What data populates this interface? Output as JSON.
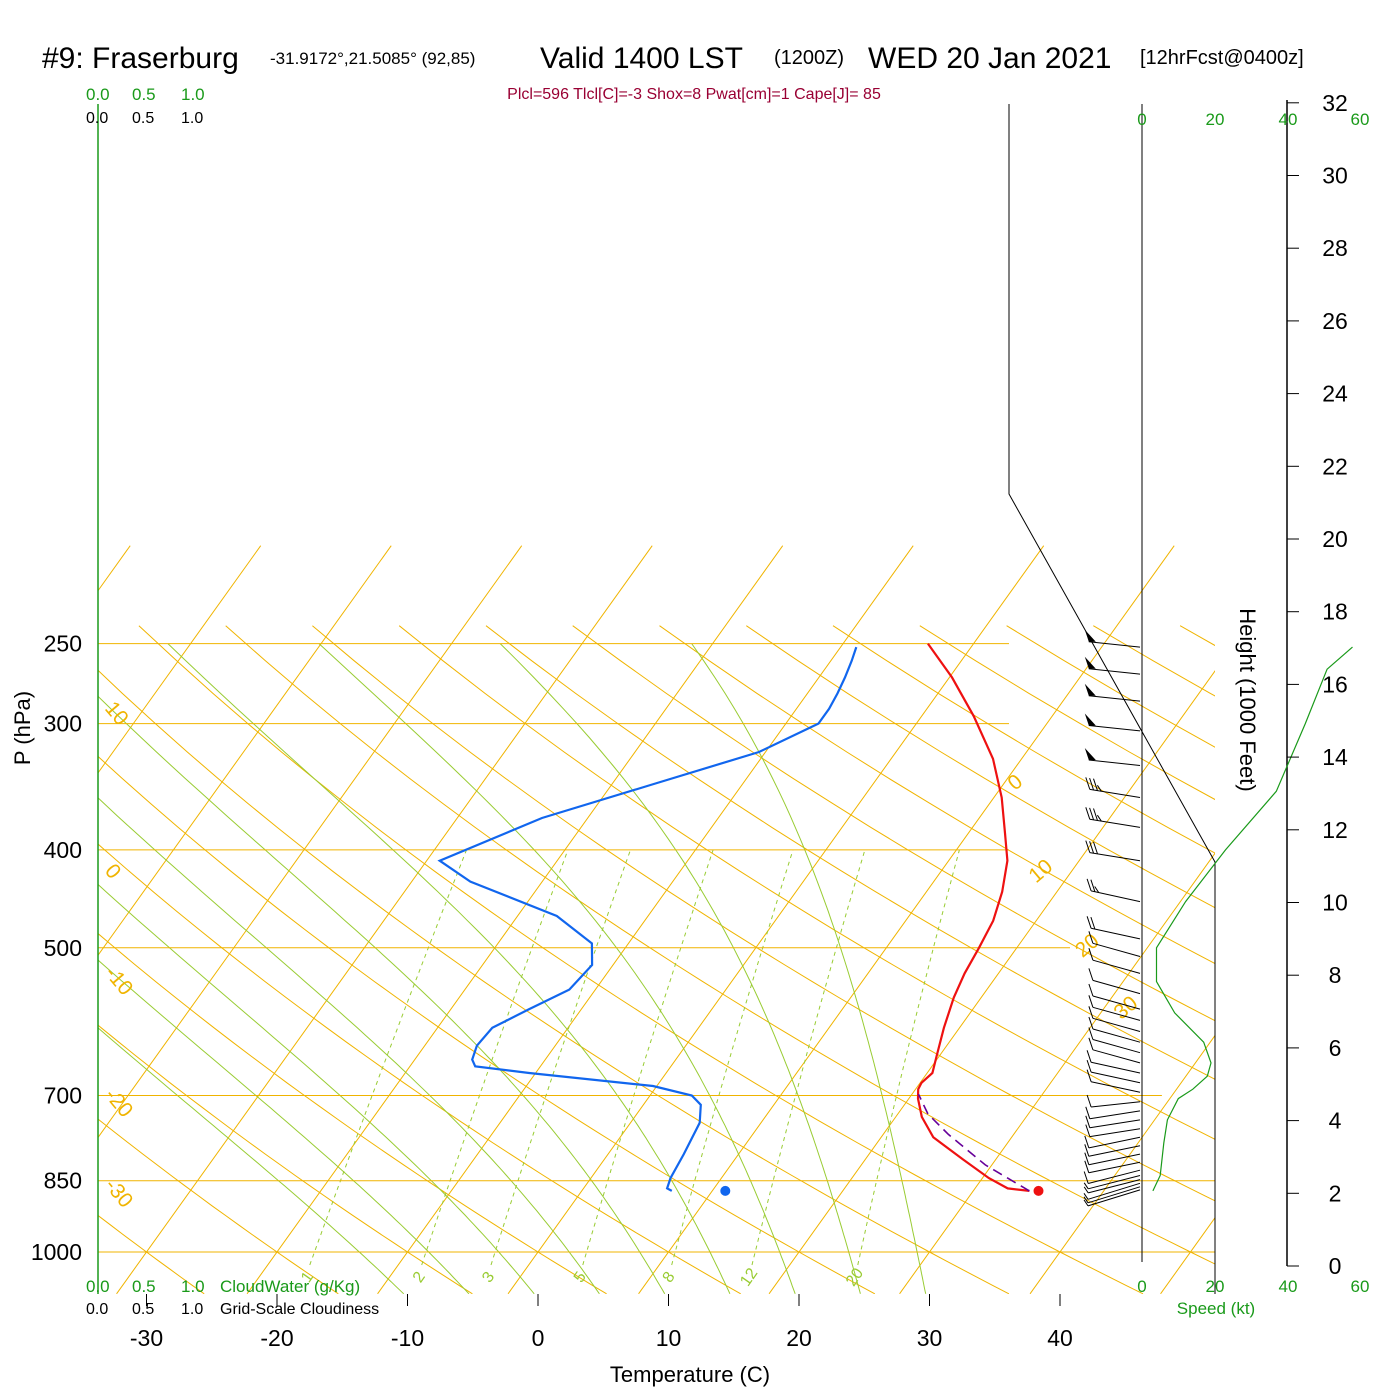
{
  "title": {
    "station": "#9: Fraserburg",
    "coords": "-31.9172°,21.5085° (92,85)",
    "valid": "Valid 1400 LST",
    "zulu": "(1200Z)",
    "date": "WED 20 Jan 2021",
    "fcst": "[12hrFcst@0400z]"
  },
  "indices": "Plcl=596 Tlcl[C]=-3 Shox=8 Pwat[cm]=1 Cape[J]= 85",
  "colors": {
    "temperature": "#ee1111",
    "dewpoint": "#1166ee",
    "parcel": "#660099",
    "isotherm": "#f0b400",
    "mixing_ratio": "#99cc33",
    "moist_adiabat": "#99cc33",
    "scale_green": "#1a9a1a"
  },
  "scales": {
    "cloudwater_top": [
      "0.0",
      "0.5",
      "1.0"
    ],
    "cloudiness_top": [
      "0.0",
      "0.5",
      "1.0"
    ],
    "cloudwater_bottom": [
      "0.0",
      "0.5",
      "1.0"
    ],
    "cloudiness_bottom": [
      "0.0",
      "0.5",
      "1.0"
    ],
    "cloudwater_label": "CloudWater (g/Kg)",
    "cloudiness_label": "Grid-Scale Cloudiness",
    "speed_ticks": [
      "0",
      "20",
      "40",
      "60"
    ],
    "speed_label": "Speed (kt)"
  },
  "chart_data": {
    "type": "line",
    "chart_kind": "skew-T log-P sounding",
    "xlabel": "Temperature (C)",
    "ylabel": "P (hPa)",
    "y2label": "Height (1000 Feet)",
    "xlim": [
      -34,
      47
    ],
    "ylim": [
      1030,
      250
    ],
    "y_scale": "log",
    "x_ticks": [
      -30,
      -20,
      -10,
      0,
      10,
      20,
      30,
      40
    ],
    "p_ticks": [
      250,
      300,
      400,
      500,
      700,
      850,
      1000
    ],
    "height_ticks": [
      0,
      2,
      4,
      6,
      8,
      10,
      12,
      14,
      16,
      18,
      20,
      22,
      24,
      26,
      28,
      30,
      32
    ],
    "isotherm_labels": [
      "10",
      "0",
      "-10",
      "-20",
      "-30",
      "0",
      "10",
      "20",
      "30"
    ],
    "mixing_ratio_labels": [
      "1",
      "2",
      "3",
      "5",
      "8",
      "12",
      "20"
    ],
    "mixing_ratios_gkg": [
      1,
      2,
      3,
      5,
      8,
      12,
      20
    ],
    "series": [
      {
        "name": "Temperature",
        "color": "#ee1111",
        "points": [
          [
            34.3,
            870
          ],
          [
            32.5,
            865
          ],
          [
            30.5,
            845
          ],
          [
            27.5,
            810
          ],
          [
            24.0,
            770
          ],
          [
            22.0,
            735
          ],
          [
            20.7,
            705
          ],
          [
            20.2,
            690
          ],
          [
            20.1,
            680
          ],
          [
            20.4,
            665
          ],
          [
            19.8,
            640
          ],
          [
            18.8,
            600
          ],
          [
            17.9,
            560
          ],
          [
            17.4,
            530
          ],
          [
            17.1,
            500
          ],
          [
            16.7,
            470
          ],
          [
            15.8,
            440
          ],
          [
            14.5,
            410
          ],
          [
            12.8,
            385
          ],
          [
            10.6,
            355
          ],
          [
            7.8,
            325
          ],
          [
            4.0,
            295
          ],
          [
            0.2,
            270
          ],
          [
            -3.5,
            250
          ]
        ]
      },
      {
        "name": "Dewpoint",
        "color": "#1166ee",
        "points": [
          [
            6.9,
            870
          ],
          [
            6.4,
            865
          ],
          [
            6.1,
            845
          ],
          [
            5.8,
            800
          ],
          [
            5.3,
            745
          ],
          [
            4.4,
            715
          ],
          [
            3.2,
            700
          ],
          [
            -0.3,
            685
          ],
          [
            -10.5,
            665
          ],
          [
            -15.0,
            655
          ],
          [
            -15.6,
            645
          ],
          [
            -16.0,
            625
          ],
          [
            -15.8,
            600
          ],
          [
            -14.0,
            575
          ],
          [
            -12.0,
            550
          ],
          [
            -11.6,
            520
          ],
          [
            -12.8,
            495
          ],
          [
            -17.0,
            465
          ],
          [
            -25.5,
            430
          ],
          [
            -29.0,
            410
          ],
          [
            -23.5,
            372
          ],
          [
            -17.0,
            345
          ],
          [
            -10.5,
            320
          ],
          [
            -7.5,
            300
          ],
          [
            -7.5,
            290
          ],
          [
            -7.7,
            280
          ],
          [
            -8.0,
            270
          ],
          [
            -8.4,
            260
          ],
          [
            -8.8,
            252
          ]
        ]
      },
      {
        "name": "Parcel",
        "color": "#660099",
        "dashed": true,
        "points": [
          [
            34.3,
            870
          ],
          [
            29.5,
            820
          ],
          [
            25.0,
            765
          ],
          [
            22.3,
            730
          ],
          [
            20.5,
            698
          ]
        ]
      }
    ],
    "surface_points": [
      {
        "name": "surface temperature",
        "color": "#ee1111",
        "t": 35.0,
        "p": 870
      },
      {
        "name": "surface dewpoint",
        "color": "#1166ee",
        "t": 11.0,
        "p": 870
      }
    ],
    "wind_profile": [
      {
        "p": 868,
        "dir": 270,
        "spd": 7
      },
      {
        "p": 862,
        "dir": 270,
        "spd": 8
      },
      {
        "p": 855,
        "dir": 270,
        "spd": 8
      },
      {
        "p": 848,
        "dir": 275,
        "spd": 9
      },
      {
        "p": 840,
        "dir": 275,
        "spd": 9
      },
      {
        "p": 830,
        "dir": 275,
        "spd": 10
      },
      {
        "p": 815,
        "dir": 280,
        "spd": 10
      },
      {
        "p": 800,
        "dir": 280,
        "spd": 10
      },
      {
        "p": 785,
        "dir": 280,
        "spd": 10
      },
      {
        "p": 770,
        "dir": 280,
        "spd": 10
      },
      {
        "p": 755,
        "dir": 285,
        "spd": 10
      },
      {
        "p": 740,
        "dir": 285,
        "spd": 10
      },
      {
        "p": 725,
        "dir": 285,
        "spd": 10
      },
      {
        "p": 710,
        "dir": 290,
        "spd": 10
      },
      {
        "p": 695,
        "dir": 290,
        "spd": 10
      },
      {
        "p": 680,
        "dir": 290,
        "spd": 10
      },
      {
        "p": 665,
        "dir": 290,
        "spd": 10
      },
      {
        "p": 650,
        "dir": 295,
        "spd": 10
      },
      {
        "p": 635,
        "dir": 295,
        "spd": 10
      },
      {
        "p": 620,
        "dir": 295,
        "spd": 10
      },
      {
        "p": 605,
        "dir": 295,
        "spd": 10
      },
      {
        "p": 590,
        "dir": 295,
        "spd": 10
      },
      {
        "p": 575,
        "dir": 295,
        "spd": 10
      },
      {
        "p": 555,
        "dir": 295,
        "spd": 10
      },
      {
        "p": 530,
        "dir": 295,
        "spd": 10
      },
      {
        "p": 510,
        "dir": 295,
        "spd": 10
      },
      {
        "p": 490,
        "dir": 290,
        "spd": 20
      },
      {
        "p": 450,
        "dir": 290,
        "spd": 25
      },
      {
        "p": 410,
        "dir": 285,
        "spd": 30
      },
      {
        "p": 380,
        "dir": 285,
        "spd": 35
      },
      {
        "p": 355,
        "dir": 285,
        "spd": 35
      },
      {
        "p": 330,
        "dir": 280,
        "spd": 50
      },
      {
        "p": 305,
        "dir": 280,
        "spd": 50
      },
      {
        "p": 285,
        "dir": 280,
        "spd": 50
      },
      {
        "p": 268,
        "dir": 280,
        "spd": 50
      },
      {
        "p": 252,
        "dir": 280,
        "spd": 50
      }
    ],
    "wind_speed_profile": [
      {
        "p": 870,
        "spd": 3
      },
      {
        "p": 840,
        "spd": 5
      },
      {
        "p": 780,
        "spd": 6
      },
      {
        "p": 740,
        "spd": 7
      },
      {
        "p": 705,
        "spd": 10
      },
      {
        "p": 690,
        "spd": 14
      },
      {
        "p": 670,
        "spd": 18
      },
      {
        "p": 650,
        "spd": 19
      },
      {
        "p": 620,
        "spd": 17
      },
      {
        "p": 580,
        "spd": 9
      },
      {
        "p": 540,
        "spd": 4
      },
      {
        "p": 500,
        "spd": 4
      },
      {
        "p": 450,
        "spd": 12
      },
      {
        "p": 400,
        "spd": 23
      },
      {
        "p": 350,
        "spd": 37
      },
      {
        "p": 300,
        "spd": 45
      },
      {
        "p": 265,
        "spd": 51
      },
      {
        "p": 252,
        "spd": 58
      }
    ]
  }
}
